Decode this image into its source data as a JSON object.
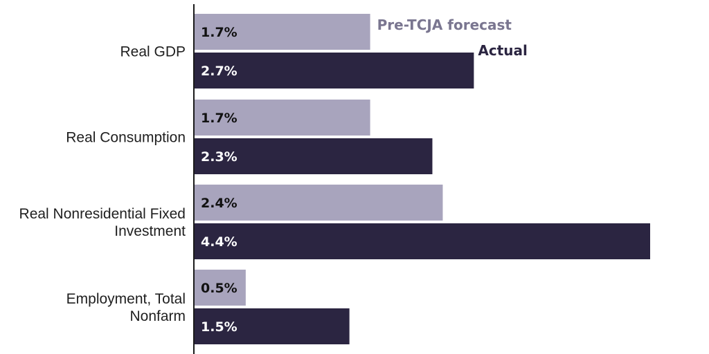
{
  "chart_data": {
    "type": "bar",
    "orientation": "horizontal",
    "categories": [
      [
        "Real GDP"
      ],
      [
        "Real Consumption"
      ],
      [
        "Real Nonresidential Fixed",
        "Investment"
      ],
      [
        "Employment, Total",
        "Nonfarm"
      ]
    ],
    "series": [
      {
        "name": "Pre-TCJA forecast",
        "color": "#a8a4bd",
        "label_color": "#111111",
        "values": [
          1.7,
          1.7,
          2.4,
          0.5
        ],
        "labels": [
          "1.7%",
          "1.7%",
          "2.4%",
          "0.5%"
        ]
      },
      {
        "name": "Actual",
        "color": "#2b2541",
        "label_color": "#ffffff",
        "values": [
          2.7,
          2.3,
          4.4,
          1.5
        ],
        "labels": [
          "2.7%",
          "2.3%",
          "4.4%",
          "1.5%"
        ]
      }
    ],
    "legend": {
      "placement": "inline-beside-first-bars",
      "colors": [
        "#7a7690",
        "#2b2541"
      ]
    },
    "xlim": [
      0,
      4.4
    ],
    "grid": false,
    "title": "",
    "xlabel": "",
    "ylabel": ""
  }
}
